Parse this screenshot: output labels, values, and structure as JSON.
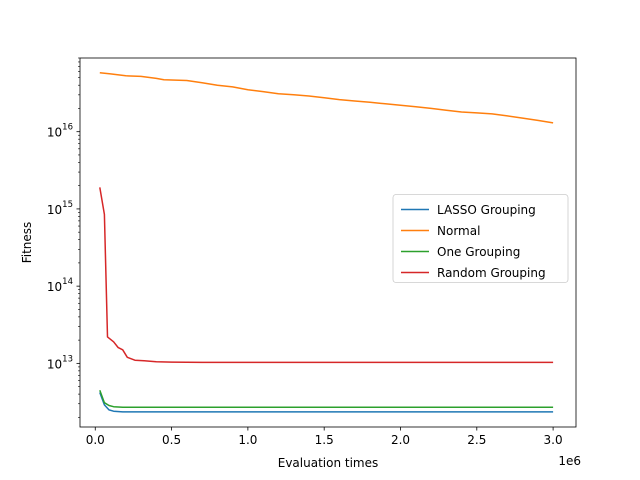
{
  "chart_data": {
    "type": "line",
    "title": "",
    "xlabel": "Evaluation times",
    "ylabel": "Fitness",
    "x_offset_label": "1e6",
    "x_scale": "linear",
    "y_scale": "log",
    "xlim": [
      -100000,
      3150000
    ],
    "ylim": [
      1500000000000.0,
      9e+16
    ],
    "x_ticks": [
      0,
      500000,
      1000000,
      1500000,
      2000000,
      2500000,
      3000000
    ],
    "x_tick_labels": [
      "0.0",
      "0.5",
      "1.0",
      "1.5",
      "2.0",
      "2.5",
      "3.0"
    ],
    "y_ticks": [
      10000000000000.0,
      100000000000000.0,
      1000000000000000.0,
      1e+16
    ],
    "y_tick_labels": [
      {
        "base": "10",
        "exp": "13"
      },
      {
        "base": "10",
        "exp": "14"
      },
      {
        "base": "10",
        "exp": "15"
      },
      {
        "base": "10",
        "exp": "16"
      }
    ],
    "grid": false,
    "legend_position": "center-right",
    "series": [
      {
        "name": "LASSO Grouping",
        "color": "#1f77b4",
        "points": [
          [
            30000,
            4200000000000.0
          ],
          [
            60000,
            2900000000000.0
          ],
          [
            90000,
            2500000000000.0
          ],
          [
            120000,
            2400000000000.0
          ],
          [
            180000,
            2350000000000.0
          ],
          [
            300000,
            2350000000000.0
          ],
          [
            1000000,
            2350000000000.0
          ],
          [
            2000000,
            2350000000000.0
          ],
          [
            3000000,
            2350000000000.0
          ]
        ]
      },
      {
        "name": "Normal",
        "color": "#ff7f0e",
        "points": [
          [
            30000,
            5.8e+16
          ],
          [
            100000,
            5.6e+16
          ],
          [
            200000,
            5.3e+16
          ],
          [
            300000,
            5.2e+16
          ],
          [
            400000,
            4.9e+16
          ],
          [
            450000,
            4.7e+16
          ],
          [
            600000,
            4.6e+16
          ],
          [
            700000,
            4.3e+16
          ],
          [
            800000,
            4e+16
          ],
          [
            900000,
            3.8e+16
          ],
          [
            1000000,
            3.5e+16
          ],
          [
            1100000,
            3.3e+16
          ],
          [
            1200000,
            3.1e+16
          ],
          [
            1300000,
            3e+16
          ],
          [
            1400000,
            2.9e+16
          ],
          [
            1500000,
            2.75e+16
          ],
          [
            1600000,
            2.6e+16
          ],
          [
            1700000,
            2.5e+16
          ],
          [
            1800000,
            2.4e+16
          ],
          [
            1900000,
            2.3e+16
          ],
          [
            2000000,
            2.2e+16
          ],
          [
            2100000,
            2.1e+16
          ],
          [
            2200000,
            2e+16
          ],
          [
            2300000,
            1.9e+16
          ],
          [
            2400000,
            1.8e+16
          ],
          [
            2500000,
            1.75e+16
          ],
          [
            2600000,
            1.7e+16
          ],
          [
            2700000,
            1.6e+16
          ],
          [
            2800000,
            1.5e+16
          ],
          [
            2900000,
            1.4e+16
          ],
          [
            3000000,
            1.3e+16
          ]
        ]
      },
      {
        "name": "One Grouping",
        "color": "#2ca02c",
        "points": [
          [
            30000,
            4500000000000.0
          ],
          [
            60000,
            3100000000000.0
          ],
          [
            90000,
            2850000000000.0
          ],
          [
            120000,
            2750000000000.0
          ],
          [
            180000,
            2700000000000.0
          ],
          [
            300000,
            2700000000000.0
          ],
          [
            1000000,
            2700000000000.0
          ],
          [
            2000000,
            2700000000000.0
          ],
          [
            3000000,
            2700000000000.0
          ]
        ]
      },
      {
        "name": "Random Grouping",
        "color": "#d62728",
        "points": [
          [
            30000,
            1900000000000000.0
          ],
          [
            60000,
            850000000000000.0
          ],
          [
            80000,
            22000000000000.0
          ],
          [
            120000,
            19000000000000.0
          ],
          [
            150000,
            16000000000000.0
          ],
          [
            180000,
            15000000000000.0
          ],
          [
            210000,
            12000000000000.0
          ],
          [
            260000,
            11000000000000.0
          ],
          [
            320000,
            10800000000000.0
          ],
          [
            400000,
            10500000000000.0
          ],
          [
            500000,
            10400000000000.0
          ],
          [
            700000,
            10300000000000.0
          ],
          [
            1000000,
            10300000000000.0
          ],
          [
            2000000,
            10300000000000.0
          ],
          [
            3000000,
            10300000000000.0
          ]
        ]
      }
    ]
  }
}
